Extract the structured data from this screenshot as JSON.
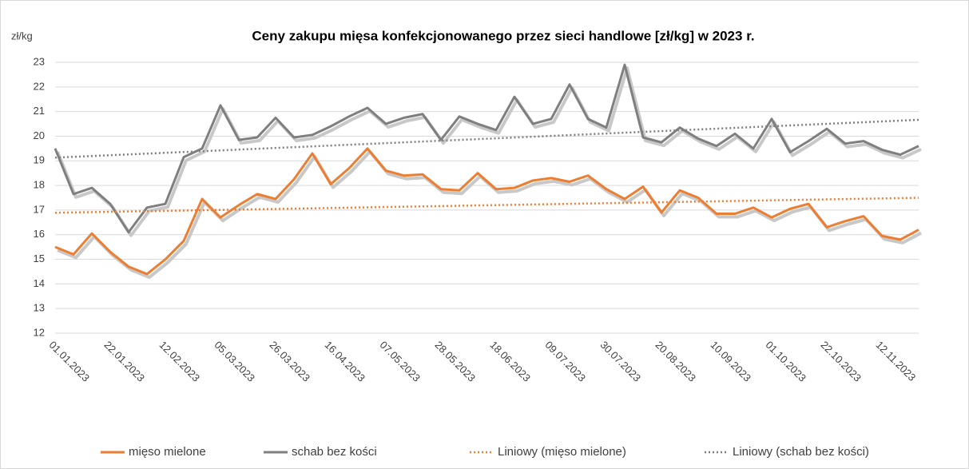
{
  "chart_data": {
    "type": "line",
    "title": "Ceny zakupu mięsa konfekcjonowanego przez sieci handlowe [zł/kg] w 2023 r.",
    "y_label": "zł/kg",
    "categories": [
      "01.01.2023",
      null,
      null,
      "22.01.2023",
      null,
      null,
      "12.02.2023",
      null,
      null,
      "05.03.2023",
      null,
      null,
      "26.03.2023",
      null,
      null,
      "16.04.2023",
      null,
      null,
      "07.05.2023",
      null,
      null,
      "28.05.2023",
      null,
      null,
      "18.06.2023",
      null,
      null,
      "09.07.2023",
      null,
      null,
      "30.07.2023",
      null,
      null,
      "20.08.2023",
      null,
      null,
      "10.09.2023",
      null,
      null,
      "01.10.2023",
      null,
      null,
      "22.10.2023",
      null,
      null,
      "12.11.2023",
      null,
      null
    ],
    "series": [
      {
        "name": "mięso mielone",
        "color": "#ed7d31",
        "values": [
          15.5,
          15.2,
          16.05,
          15.3,
          14.7,
          14.4,
          15.0,
          15.75,
          17.45,
          16.7,
          17.2,
          17.65,
          17.45,
          18.25,
          19.3,
          18.05,
          18.7,
          19.5,
          18.6,
          18.4,
          18.45,
          17.85,
          17.8,
          18.5,
          17.85,
          17.9,
          18.2,
          18.3,
          18.15,
          18.4,
          17.85,
          17.45,
          17.95,
          16.9,
          17.8,
          17.5,
          16.85,
          16.85,
          17.1,
          16.7,
          17.05,
          17.25,
          16.3,
          16.55,
          16.75,
          15.95,
          15.8,
          16.2
        ]
      },
      {
        "name": "schab bez kości",
        "color": "#7f7f7f",
        "values": [
          19.5,
          17.65,
          17.9,
          17.25,
          16.1,
          17.1,
          17.25,
          19.15,
          19.5,
          21.25,
          19.85,
          19.95,
          20.75,
          19.95,
          20.05,
          20.4,
          20.8,
          21.15,
          20.5,
          20.75,
          20.9,
          19.85,
          20.8,
          20.5,
          20.25,
          21.6,
          20.5,
          20.7,
          22.1,
          20.7,
          20.35,
          22.9,
          19.95,
          19.75,
          20.35,
          19.9,
          19.6,
          20.1,
          19.5,
          20.7,
          19.35,
          19.8,
          20.3,
          19.7,
          19.8,
          19.45,
          19.25,
          19.6
        ]
      },
      {
        "name": "Liniowy (mięso mielone)",
        "color": "#ed7d31",
        "trend_of": 0,
        "dash": "dotted"
      },
      {
        "name": "Liniowy (schab bez kości)",
        "color": "#7f7f7f",
        "trend_of": 1,
        "dash": "dotted"
      }
    ],
    "ylim": [
      12,
      23
    ],
    "yticks": [
      12,
      13,
      14,
      15,
      16,
      17,
      18,
      19,
      20,
      21,
      22,
      23
    ],
    "grid": true,
    "legend": "bottom"
  }
}
